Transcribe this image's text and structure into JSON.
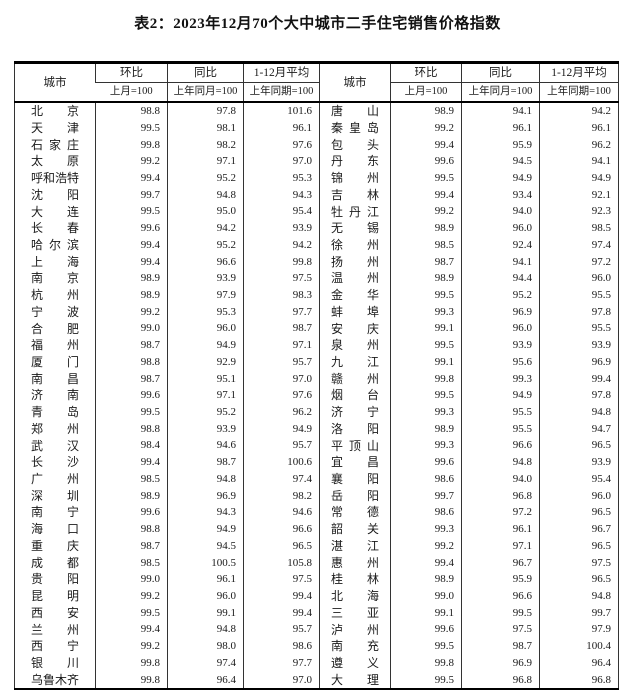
{
  "title": "表2：2023年12月70个大中城市二手住宅销售价格指数",
  "table": {
    "header": {
      "city": "城市",
      "mom": "环比",
      "yoy": "同比",
      "avg": "1-12月平均",
      "mom_base": "上月=100",
      "yoy_base": "上年同月=100",
      "avg_base": "上年同期=100"
    },
    "left_rows": [
      {
        "city": "北京",
        "mom": "98.8",
        "yoy": "97.8",
        "avg": "101.6"
      },
      {
        "city": "天津",
        "mom": "99.5",
        "yoy": "98.1",
        "avg": "96.1"
      },
      {
        "city": "石家庄",
        "mom": "99.8",
        "yoy": "98.2",
        "avg": "97.6"
      },
      {
        "city": "太原",
        "mom": "99.2",
        "yoy": "97.1",
        "avg": "97.0"
      },
      {
        "city": "呼和浩特",
        "mom": "99.4",
        "yoy": "95.2",
        "avg": "95.3"
      },
      {
        "city": "沈阳",
        "mom": "99.7",
        "yoy": "94.8",
        "avg": "94.3"
      },
      {
        "city": "大连",
        "mom": "99.5",
        "yoy": "95.0",
        "avg": "95.4"
      },
      {
        "city": "长春",
        "mom": "99.6",
        "yoy": "94.2",
        "avg": "93.9"
      },
      {
        "city": "哈尔滨",
        "mom": "99.4",
        "yoy": "95.2",
        "avg": "94.2"
      },
      {
        "city": "上海",
        "mom": "99.4",
        "yoy": "96.6",
        "avg": "99.8"
      },
      {
        "city": "南京",
        "mom": "98.9",
        "yoy": "93.9",
        "avg": "97.5"
      },
      {
        "city": "杭州",
        "mom": "98.9",
        "yoy": "97.9",
        "avg": "98.3"
      },
      {
        "city": "宁波",
        "mom": "99.2",
        "yoy": "95.3",
        "avg": "97.7"
      },
      {
        "city": "合肥",
        "mom": "99.0",
        "yoy": "96.0",
        "avg": "98.7"
      },
      {
        "city": "福州",
        "mom": "98.7",
        "yoy": "94.9",
        "avg": "97.1"
      },
      {
        "city": "厦门",
        "mom": "98.8",
        "yoy": "92.9",
        "avg": "95.7"
      },
      {
        "city": "南昌",
        "mom": "98.7",
        "yoy": "95.1",
        "avg": "97.0"
      },
      {
        "city": "济南",
        "mom": "99.6",
        "yoy": "97.1",
        "avg": "97.6"
      },
      {
        "city": "青岛",
        "mom": "99.5",
        "yoy": "95.2",
        "avg": "96.2"
      },
      {
        "city": "郑州",
        "mom": "98.8",
        "yoy": "93.9",
        "avg": "94.9"
      },
      {
        "city": "武汉",
        "mom": "98.4",
        "yoy": "94.6",
        "avg": "95.7"
      },
      {
        "city": "长沙",
        "mom": "99.4",
        "yoy": "98.7",
        "avg": "100.6"
      },
      {
        "city": "广州",
        "mom": "98.5",
        "yoy": "94.8",
        "avg": "97.4"
      },
      {
        "city": "深圳",
        "mom": "98.9",
        "yoy": "96.9",
        "avg": "98.2"
      },
      {
        "city": "南宁",
        "mom": "99.6",
        "yoy": "94.3",
        "avg": "94.6"
      },
      {
        "city": "海口",
        "mom": "98.8",
        "yoy": "94.9",
        "avg": "96.6"
      },
      {
        "city": "重庆",
        "mom": "98.7",
        "yoy": "94.5",
        "avg": "96.5"
      },
      {
        "city": "成都",
        "mom": "98.5",
        "yoy": "100.5",
        "avg": "105.8"
      },
      {
        "city": "贵阳",
        "mom": "99.0",
        "yoy": "96.1",
        "avg": "97.5"
      },
      {
        "city": "昆明",
        "mom": "99.2",
        "yoy": "96.0",
        "avg": "99.4"
      },
      {
        "city": "西安",
        "mom": "99.5",
        "yoy": "99.1",
        "avg": "99.4"
      },
      {
        "city": "兰州",
        "mom": "99.4",
        "yoy": "94.8",
        "avg": "95.7"
      },
      {
        "city": "西宁",
        "mom": "99.2",
        "yoy": "98.0",
        "avg": "98.6"
      },
      {
        "city": "银川",
        "mom": "99.8",
        "yoy": "97.4",
        "avg": "97.7"
      },
      {
        "city": "乌鲁木齐",
        "mom": "99.8",
        "yoy": "96.4",
        "avg": "97.0"
      }
    ],
    "right_rows": [
      {
        "city": "唐山",
        "mom": "98.9",
        "yoy": "94.1",
        "avg": "94.2"
      },
      {
        "city": "秦皇岛",
        "mom": "99.2",
        "yoy": "96.1",
        "avg": "96.1"
      },
      {
        "city": "包头",
        "mom": "99.4",
        "yoy": "95.9",
        "avg": "96.2"
      },
      {
        "city": "丹东",
        "mom": "99.6",
        "yoy": "94.5",
        "avg": "94.1"
      },
      {
        "city": "锦州",
        "mom": "99.5",
        "yoy": "94.9",
        "avg": "94.9"
      },
      {
        "city": "吉林",
        "mom": "99.4",
        "yoy": "93.4",
        "avg": "92.1"
      },
      {
        "city": "牡丹江",
        "mom": "99.2",
        "yoy": "94.0",
        "avg": "92.3"
      },
      {
        "city": "无锡",
        "mom": "98.9",
        "yoy": "96.0",
        "avg": "98.5"
      },
      {
        "city": "徐州",
        "mom": "98.5",
        "yoy": "92.4",
        "avg": "97.4"
      },
      {
        "city": "扬州",
        "mom": "98.7",
        "yoy": "94.1",
        "avg": "97.2"
      },
      {
        "city": "温州",
        "mom": "98.9",
        "yoy": "94.4",
        "avg": "96.0"
      },
      {
        "city": "金华",
        "mom": "99.5",
        "yoy": "95.2",
        "avg": "95.5"
      },
      {
        "city": "蚌埠",
        "mom": "99.3",
        "yoy": "96.9",
        "avg": "97.8"
      },
      {
        "city": "安庆",
        "mom": "99.1",
        "yoy": "96.0",
        "avg": "95.5"
      },
      {
        "city": "泉州",
        "mom": "99.5",
        "yoy": "93.9",
        "avg": "93.9"
      },
      {
        "city": "九江",
        "mom": "99.1",
        "yoy": "95.6",
        "avg": "96.9"
      },
      {
        "city": "赣州",
        "mom": "99.8",
        "yoy": "99.3",
        "avg": "99.4"
      },
      {
        "city": "烟台",
        "mom": "99.5",
        "yoy": "94.9",
        "avg": "97.8"
      },
      {
        "city": "济宁",
        "mom": "99.3",
        "yoy": "95.5",
        "avg": "94.8"
      },
      {
        "city": "洛阳",
        "mom": "98.9",
        "yoy": "95.5",
        "avg": "94.7"
      },
      {
        "city": "平顶山",
        "mom": "99.3",
        "yoy": "96.6",
        "avg": "96.5"
      },
      {
        "city": "宜昌",
        "mom": "99.6",
        "yoy": "94.8",
        "avg": "93.9"
      },
      {
        "city": "襄阳",
        "mom": "98.6",
        "yoy": "94.0",
        "avg": "95.4"
      },
      {
        "city": "岳阳",
        "mom": "99.7",
        "yoy": "96.8",
        "avg": "96.0"
      },
      {
        "city": "常德",
        "mom": "98.6",
        "yoy": "97.2",
        "avg": "96.5"
      },
      {
        "city": "韶关",
        "mom": "99.3",
        "yoy": "96.1",
        "avg": "96.7"
      },
      {
        "city": "湛江",
        "mom": "99.2",
        "yoy": "97.1",
        "avg": "96.5"
      },
      {
        "city": "惠州",
        "mom": "99.4",
        "yoy": "96.7",
        "avg": "97.5"
      },
      {
        "city": "桂林",
        "mom": "98.9",
        "yoy": "95.9",
        "avg": "96.5"
      },
      {
        "city": "北海",
        "mom": "99.0",
        "yoy": "96.6",
        "avg": "94.8"
      },
      {
        "city": "三亚",
        "mom": "99.1",
        "yoy": "99.5",
        "avg": "99.7"
      },
      {
        "city": "泸州",
        "mom": "99.6",
        "yoy": "97.5",
        "avg": "97.9"
      },
      {
        "city": "南充",
        "mom": "99.5",
        "yoy": "98.7",
        "avg": "100.4"
      },
      {
        "city": "遵义",
        "mom": "99.8",
        "yoy": "96.9",
        "avg": "96.4"
      },
      {
        "city": "大理",
        "mom": "99.5",
        "yoy": "96.8",
        "avg": "96.8"
      }
    ]
  }
}
